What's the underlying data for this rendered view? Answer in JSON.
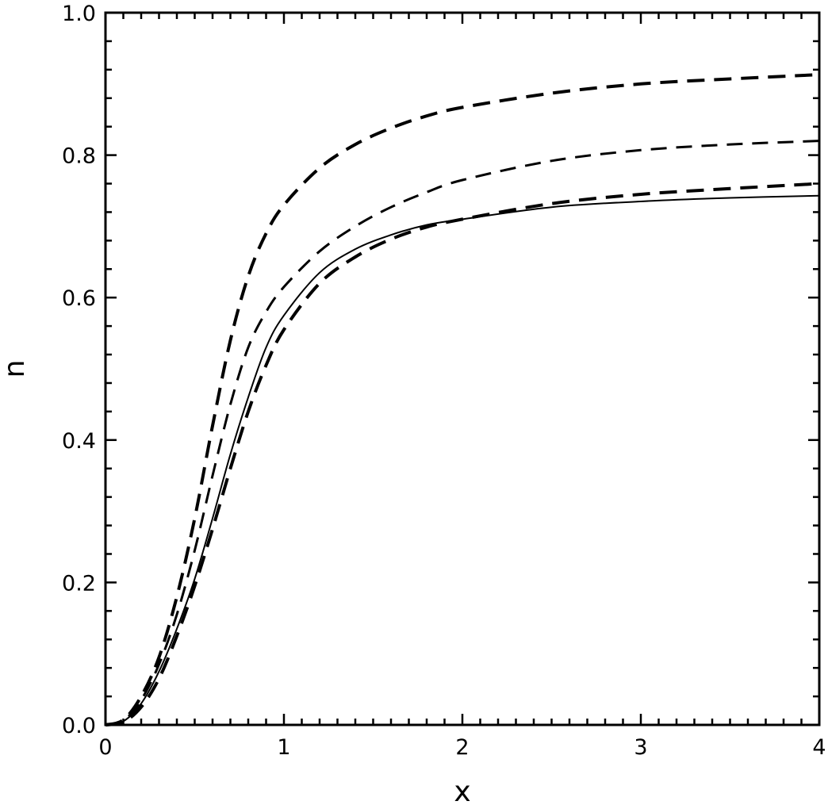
{
  "chart_data": {
    "type": "line",
    "xlabel": "x",
    "ylabel": "n",
    "xlim": [
      0,
      4
    ],
    "ylim": [
      0,
      1
    ],
    "x_ticks": [
      "0",
      "1",
      "2",
      "3",
      "4"
    ],
    "y_ticks": [
      "0.0",
      "0.2",
      "0.4",
      "0.6",
      "0.8",
      "1.0"
    ],
    "grid": false,
    "legend": "none",
    "series": [
      {
        "style": "solid",
        "points": [
          [
            0,
            0
          ],
          [
            0.1,
            0.005
          ],
          [
            0.2,
            0.03
          ],
          [
            0.3,
            0.075
          ],
          [
            0.4,
            0.135
          ],
          [
            0.5,
            0.205
          ],
          [
            0.6,
            0.29
          ],
          [
            0.7,
            0.38
          ],
          [
            0.8,
            0.46
          ],
          [
            0.9,
            0.53
          ],
          [
            1.0,
            0.575
          ],
          [
            1.2,
            0.635
          ],
          [
            1.4,
            0.668
          ],
          [
            1.6,
            0.688
          ],
          [
            1.8,
            0.702
          ],
          [
            2.0,
            0.71
          ],
          [
            2.5,
            0.727
          ],
          [
            3.0,
            0.735
          ],
          [
            3.5,
            0.74
          ],
          [
            4.0,
            0.743
          ]
        ]
      },
      {
        "style": "dashed-heavy",
        "points": [
          [
            0,
            0
          ],
          [
            0.1,
            0.004
          ],
          [
            0.2,
            0.025
          ],
          [
            0.3,
            0.065
          ],
          [
            0.4,
            0.125
          ],
          [
            0.5,
            0.195
          ],
          [
            0.6,
            0.275
          ],
          [
            0.7,
            0.36
          ],
          [
            0.8,
            0.44
          ],
          [
            0.9,
            0.505
          ],
          [
            1.0,
            0.555
          ],
          [
            1.2,
            0.62
          ],
          [
            1.4,
            0.657
          ],
          [
            1.6,
            0.682
          ],
          [
            1.8,
            0.699
          ],
          [
            2.0,
            0.71
          ],
          [
            2.5,
            0.732
          ],
          [
            3.0,
            0.745
          ],
          [
            3.5,
            0.753
          ],
          [
            4.0,
            0.76
          ]
        ]
      },
      {
        "style": "dashed-medium",
        "points": [
          [
            0,
            0
          ],
          [
            0.1,
            0.006
          ],
          [
            0.2,
            0.035
          ],
          [
            0.3,
            0.085
          ],
          [
            0.4,
            0.155
          ],
          [
            0.5,
            0.245
          ],
          [
            0.6,
            0.35
          ],
          [
            0.7,
            0.45
          ],
          [
            0.8,
            0.53
          ],
          [
            0.9,
            0.58
          ],
          [
            1.0,
            0.615
          ],
          [
            1.2,
            0.665
          ],
          [
            1.4,
            0.7
          ],
          [
            1.6,
            0.727
          ],
          [
            1.8,
            0.748
          ],
          [
            2.0,
            0.765
          ],
          [
            2.5,
            0.792
          ],
          [
            3.0,
            0.807
          ],
          [
            3.5,
            0.815
          ],
          [
            4.0,
            0.82
          ]
        ]
      },
      {
        "style": "dashed-heavy",
        "points": [
          [
            0,
            0
          ],
          [
            0.1,
            0.007
          ],
          [
            0.2,
            0.04
          ],
          [
            0.3,
            0.095
          ],
          [
            0.4,
            0.18
          ],
          [
            0.5,
            0.29
          ],
          [
            0.6,
            0.42
          ],
          [
            0.7,
            0.54
          ],
          [
            0.8,
            0.63
          ],
          [
            0.9,
            0.69
          ],
          [
            1.0,
            0.73
          ],
          [
            1.2,
            0.782
          ],
          [
            1.4,
            0.815
          ],
          [
            1.6,
            0.838
          ],
          [
            1.8,
            0.855
          ],
          [
            2.0,
            0.867
          ],
          [
            2.5,
            0.887
          ],
          [
            3.0,
            0.9
          ],
          [
            3.5,
            0.907
          ],
          [
            4.0,
            0.913
          ]
        ]
      }
    ]
  }
}
